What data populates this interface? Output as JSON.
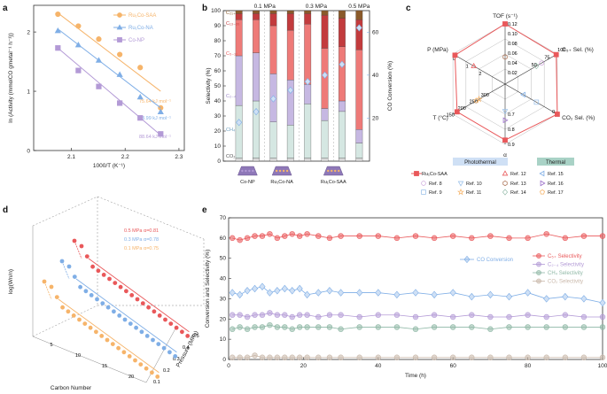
{
  "panel_labels": [
    "a",
    "b",
    "c",
    "d",
    "e"
  ],
  "colors": {
    "orange": "#f6b46a",
    "blue": "#7faee6",
    "purple": "#b39ad6",
    "red": "#e9585a",
    "green": "#8fb8a6",
    "brown": "#b07a5e",
    "grey": "#c9b8aa",
    "lightblue": "#9fc3ea",
    "axis": "#333333"
  },
  "chart_data": [
    {
      "id": "a",
      "type": "line",
      "title": "",
      "xlabel": "1000/T (K⁻¹)",
      "ylabel": "ln (Activity (mmolCO gmetal⁻¹ h⁻¹))",
      "xlim": [
        2.03,
        2.31
      ],
      "ylim": [
        0,
        2.45
      ],
      "xticks": [
        "2.1",
        "2.2",
        "2.3"
      ],
      "yticks": [
        "0",
        "1",
        "2"
      ],
      "series": [
        {
          "name": "Ru₁Co-SAA",
          "color": "#f6b46a",
          "marker": "circle",
          "x": [
            2.075,
            2.113,
            2.151,
            2.19,
            2.228,
            2.266
          ],
          "y": [
            2.3,
            2.1,
            1.88,
            1.62,
            1.4,
            0.72
          ],
          "fit": [
            [
              2.075,
              2.32
            ],
            [
              2.266,
              1.0
            ]
          ],
          "ea": "75.64 kJ mol⁻¹"
        },
        {
          "name": "Ru₁Co-NA",
          "color": "#7faee6",
          "marker": "triangle",
          "x": [
            2.075,
            2.113,
            2.151,
            2.19,
            2.228,
            2.266
          ],
          "y": [
            2.02,
            1.78,
            1.52,
            1.28,
            0.9,
            0.65
          ],
          "fit": [
            [
              2.075,
              2.05
            ],
            [
              2.266,
              0.72
            ]
          ],
          "ea": "83.99 kJ mol⁻¹"
        },
        {
          "name": "Co-NP",
          "color": "#b39ad6",
          "marker": "square",
          "x": [
            2.075,
            2.113,
            2.151,
            2.19,
            2.228,
            2.266
          ],
          "y": [
            1.73,
            1.35,
            1.08,
            0.8,
            0.55,
            0.28
          ],
          "fit": [
            [
              2.075,
              1.73
            ],
            [
              2.266,
              0.26
            ]
          ],
          "ea": "88.64 kJ mol⁻¹"
        }
      ]
    },
    {
      "id": "b",
      "type": "bar",
      "title": "",
      "ylabel": "Selectivity (%)",
      "y2label": "CO Conversion (%)",
      "ylim": [
        0,
        100
      ],
      "y2lim": [
        0,
        70
      ],
      "yticks": [
        "0",
        "10",
        "20",
        "30",
        "40",
        "50",
        "60",
        "70",
        "80",
        "90",
        "100"
      ],
      "y2ticks": [
        "20",
        "40",
        "60"
      ],
      "bracket_labels": [
        "0.1 MPa",
        "0.3 MPa",
        "0.5 MPa"
      ],
      "stack_names": [
        "CO₂",
        "CH₄",
        "C₂₋₄",
        "C₅₋₁₂",
        "C₁₃₋₂₀",
        "C₂₁₊"
      ],
      "stack_colors": [
        "#d9d9d9",
        "#d5e7e2",
        "#c6b8e2",
        "#ee7a78",
        "#c23b3d",
        "#8a5a2a"
      ],
      "bars": [
        [
          2,
          35,
          33,
          24,
          4,
          2
        ],
        [
          2,
          38,
          32,
          22,
          4,
          2
        ],
        [
          2,
          24,
          32,
          32,
          8,
          2
        ],
        [
          2,
          22,
          30,
          33,
          11,
          2
        ],
        [
          2,
          36,
          13,
          40,
          7,
          2
        ],
        [
          2,
          25,
          8,
          40,
          22,
          3
        ],
        [
          2,
          31,
          7,
          36,
          19,
          5
        ],
        [
          2,
          10,
          9,
          53,
          20,
          6
        ]
      ],
      "conversion": [
        18,
        23,
        29,
        33,
        37,
        40,
        45,
        62
      ],
      "catalysts": [
        "Co-NP",
        "Ru₁Co-NA",
        "Ru₁Co-SAA"
      ]
    },
    {
      "id": "c",
      "type": "radar",
      "axes": [
        "TOF (s⁻¹)",
        "C₅₊ Sel. (%)",
        "CO₂ Sel. (%)",
        "α",
        "T (°C)",
        "P (MPa)"
      ],
      "axis_ticks": {
        "tof": [
          "0.12",
          "0.10",
          "0.08",
          "0.06",
          "0.04",
          "0.02"
        ],
        "c5": [
          "100",
          "75",
          "50"
        ],
        "co2": [
          "0"
        ],
        "alpha": [
          "0.7",
          "0.8",
          "0.9"
        ],
        "temp": [
          "300",
          "250",
          "200",
          "150"
        ],
        "p": [
          "2",
          "1",
          "0"
        ]
      },
      "series": [
        {
          "name": "Ru₁Co-SAA",
          "color": "#e9585a",
          "marker": "square",
          "values": [
            1.0,
            0.98,
            1.0,
            0.93,
            0.92,
            0.96
          ]
        },
        {
          "name": "Ref. 8",
          "color": "#c89bd8",
          "marker": "circle",
          "values": [
            0.3,
            0.7,
            0.4,
            0.5,
            0.4,
            0.4
          ]
        },
        {
          "name": "Ref. 9",
          "color": "#9fc3ea",
          "marker": "square-open",
          "values": [
            0.25,
            0.6,
            0.6,
            0.5,
            0.5,
            0.45
          ]
        },
        {
          "name": "Ref. 10",
          "color": "#9fc3ea",
          "marker": "triangle-down",
          "values": [
            0.35,
            0.65,
            0.5,
            0.45,
            0.55,
            0.5
          ]
        },
        {
          "name": "Ref. 11",
          "color": "#f6b46a",
          "marker": "star",
          "values": [
            0.4,
            0.55,
            0.55,
            0.6,
            0.5,
            0.55
          ]
        },
        {
          "name": "Ref. 12",
          "color": "#e9585a",
          "marker": "triangle-open",
          "values": [
            0.5,
            0.5,
            0.45,
            0.55,
            0.45,
            0.6
          ]
        },
        {
          "name": "Ref. 13",
          "color": "#b07a5e",
          "marker": "hexagon",
          "values": [
            0.45,
            0.45,
            0.5,
            0.5,
            0.6,
            0.55
          ]
        },
        {
          "name": "Ref. 14",
          "color": "#8fb8a6",
          "marker": "diamond",
          "values": [
            0.55,
            0.6,
            0.4,
            0.55,
            0.5,
            0.65
          ]
        },
        {
          "name": "Ref. 15",
          "color": "#7faee6",
          "marker": "triangle-left",
          "values": [
            0.6,
            0.5,
            0.35,
            0.45,
            0.55,
            0.5
          ]
        },
        {
          "name": "Ref. 16",
          "color": "#9b6fc9",
          "marker": "triangle-right",
          "values": [
            0.5,
            0.65,
            0.45,
            0.6,
            0.45,
            0.45
          ]
        },
        {
          "name": "Ref. 17",
          "color": "#f6b46a",
          "marker": "pentagon",
          "values": [
            0.65,
            0.55,
            0.5,
            0.5,
            0.55,
            0.6
          ]
        }
      ],
      "groups": [
        "Photothermal",
        "Thermal"
      ]
    },
    {
      "id": "d",
      "type": "scatter",
      "xlabel": "Carbon Number",
      "ylabel": "log(Wn/n)",
      "zlabel": "Pressure (MPa)",
      "xticks": [
        "5",
        "10",
        "15",
        "20"
      ],
      "zticks": [
        "0.1",
        "0.2",
        "0.3",
        "0.4",
        "0.5"
      ],
      "series": [
        {
          "name": "0.5 MPa",
          "alpha": "α=0.81",
          "color": "#e9585a"
        },
        {
          "name": "0.3 MPa",
          "alpha": "α=0.78",
          "color": "#7faee6"
        },
        {
          "name": "0.1 MPa",
          "alpha": "α=0.75",
          "color": "#f6b46a"
        }
      ]
    },
    {
      "id": "e",
      "type": "line",
      "xlabel": "Time (h)",
      "ylabel": "Conversion and Selectivity (%)",
      "xlim": [
        0,
        100
      ],
      "ylim": [
        0,
        70
      ],
      "xticks": [
        "0",
        "20",
        "40",
        "60",
        "80",
        "100"
      ],
      "yticks": [
        "0",
        "10",
        "20",
        "30",
        "40",
        "50",
        "60",
        "70"
      ],
      "series": [
        {
          "name": "CO Conversion",
          "color": "#7faee6",
          "marker": "diamond",
          "x": [
            1,
            3,
            5,
            7,
            9,
            11,
            13,
            15,
            17,
            19,
            21,
            24,
            27,
            30,
            35,
            40,
            45,
            50,
            55,
            60,
            65,
            70,
            75,
            80,
            85,
            90,
            95,
            100
          ],
          "y": [
            33,
            32,
            34,
            35,
            36,
            33,
            34,
            35,
            34,
            35,
            32,
            33,
            34,
            33,
            33,
            33,
            32,
            33,
            32,
            33,
            31,
            32,
            31,
            33,
            30,
            31,
            30,
            28
          ]
        },
        {
          "name": "C₅₊ Selectivity",
          "color": "#e9585a",
          "marker": "circle",
          "x": [
            1,
            3,
            5,
            7,
            9,
            11,
            13,
            15,
            17,
            19,
            21,
            24,
            27,
            30,
            35,
            40,
            45,
            50,
            55,
            60,
            65,
            70,
            75,
            80,
            85,
            90,
            95,
            100
          ],
          "y": [
            60,
            59,
            60,
            61,
            61,
            62,
            60,
            61,
            62,
            61,
            62,
            61,
            60,
            61,
            61,
            61,
            60,
            61,
            60,
            61,
            60,
            61,
            60,
            60,
            62,
            60,
            61,
            61
          ]
        },
        {
          "name": "C₂₋₄ Selectivity",
          "color": "#b39ad6",
          "marker": "circle",
          "x": [
            1,
            3,
            5,
            7,
            9,
            11,
            13,
            15,
            17,
            19,
            21,
            24,
            27,
            30,
            35,
            40,
            45,
            50,
            55,
            60,
            65,
            70,
            75,
            80,
            85,
            90,
            95,
            100
          ],
          "y": [
            22,
            22,
            21,
            22,
            22,
            23,
            22,
            22,
            21,
            22,
            22,
            21,
            22,
            22,
            21,
            22,
            22,
            21,
            22,
            21,
            22,
            21,
            21,
            22,
            21,
            22,
            21,
            21
          ]
        },
        {
          "name": "CH₄ Selectivity",
          "color": "#8fb8a6",
          "marker": "circle",
          "x": [
            1,
            3,
            5,
            7,
            9,
            11,
            13,
            15,
            17,
            19,
            21,
            24,
            27,
            30,
            35,
            40,
            45,
            50,
            55,
            60,
            65,
            70,
            75,
            80,
            85,
            90,
            95,
            100
          ],
          "y": [
            15,
            16,
            15,
            16,
            16,
            17,
            16,
            16,
            15,
            16,
            16,
            16,
            16,
            15,
            16,
            16,
            16,
            15,
            16,
            16,
            16,
            15,
            16,
            16,
            16,
            16,
            16,
            16
          ]
        },
        {
          "name": "CO₂ Selectivity",
          "color": "#c9b8aa",
          "marker": "circle",
          "x": [
            1,
            3,
            5,
            7,
            9,
            11,
            13,
            15,
            17,
            19,
            21,
            24,
            27,
            30,
            35,
            40,
            45,
            50,
            55,
            60,
            65,
            70,
            75,
            80,
            85,
            90,
            95,
            100
          ],
          "y": [
            1,
            1,
            1,
            2,
            1,
            1,
            1,
            1,
            1,
            1,
            1,
            1,
            1,
            1,
            1,
            1,
            1,
            1,
            1,
            1,
            1,
            1,
            1,
            1,
            1,
            1,
            1,
            1
          ]
        }
      ]
    }
  ]
}
